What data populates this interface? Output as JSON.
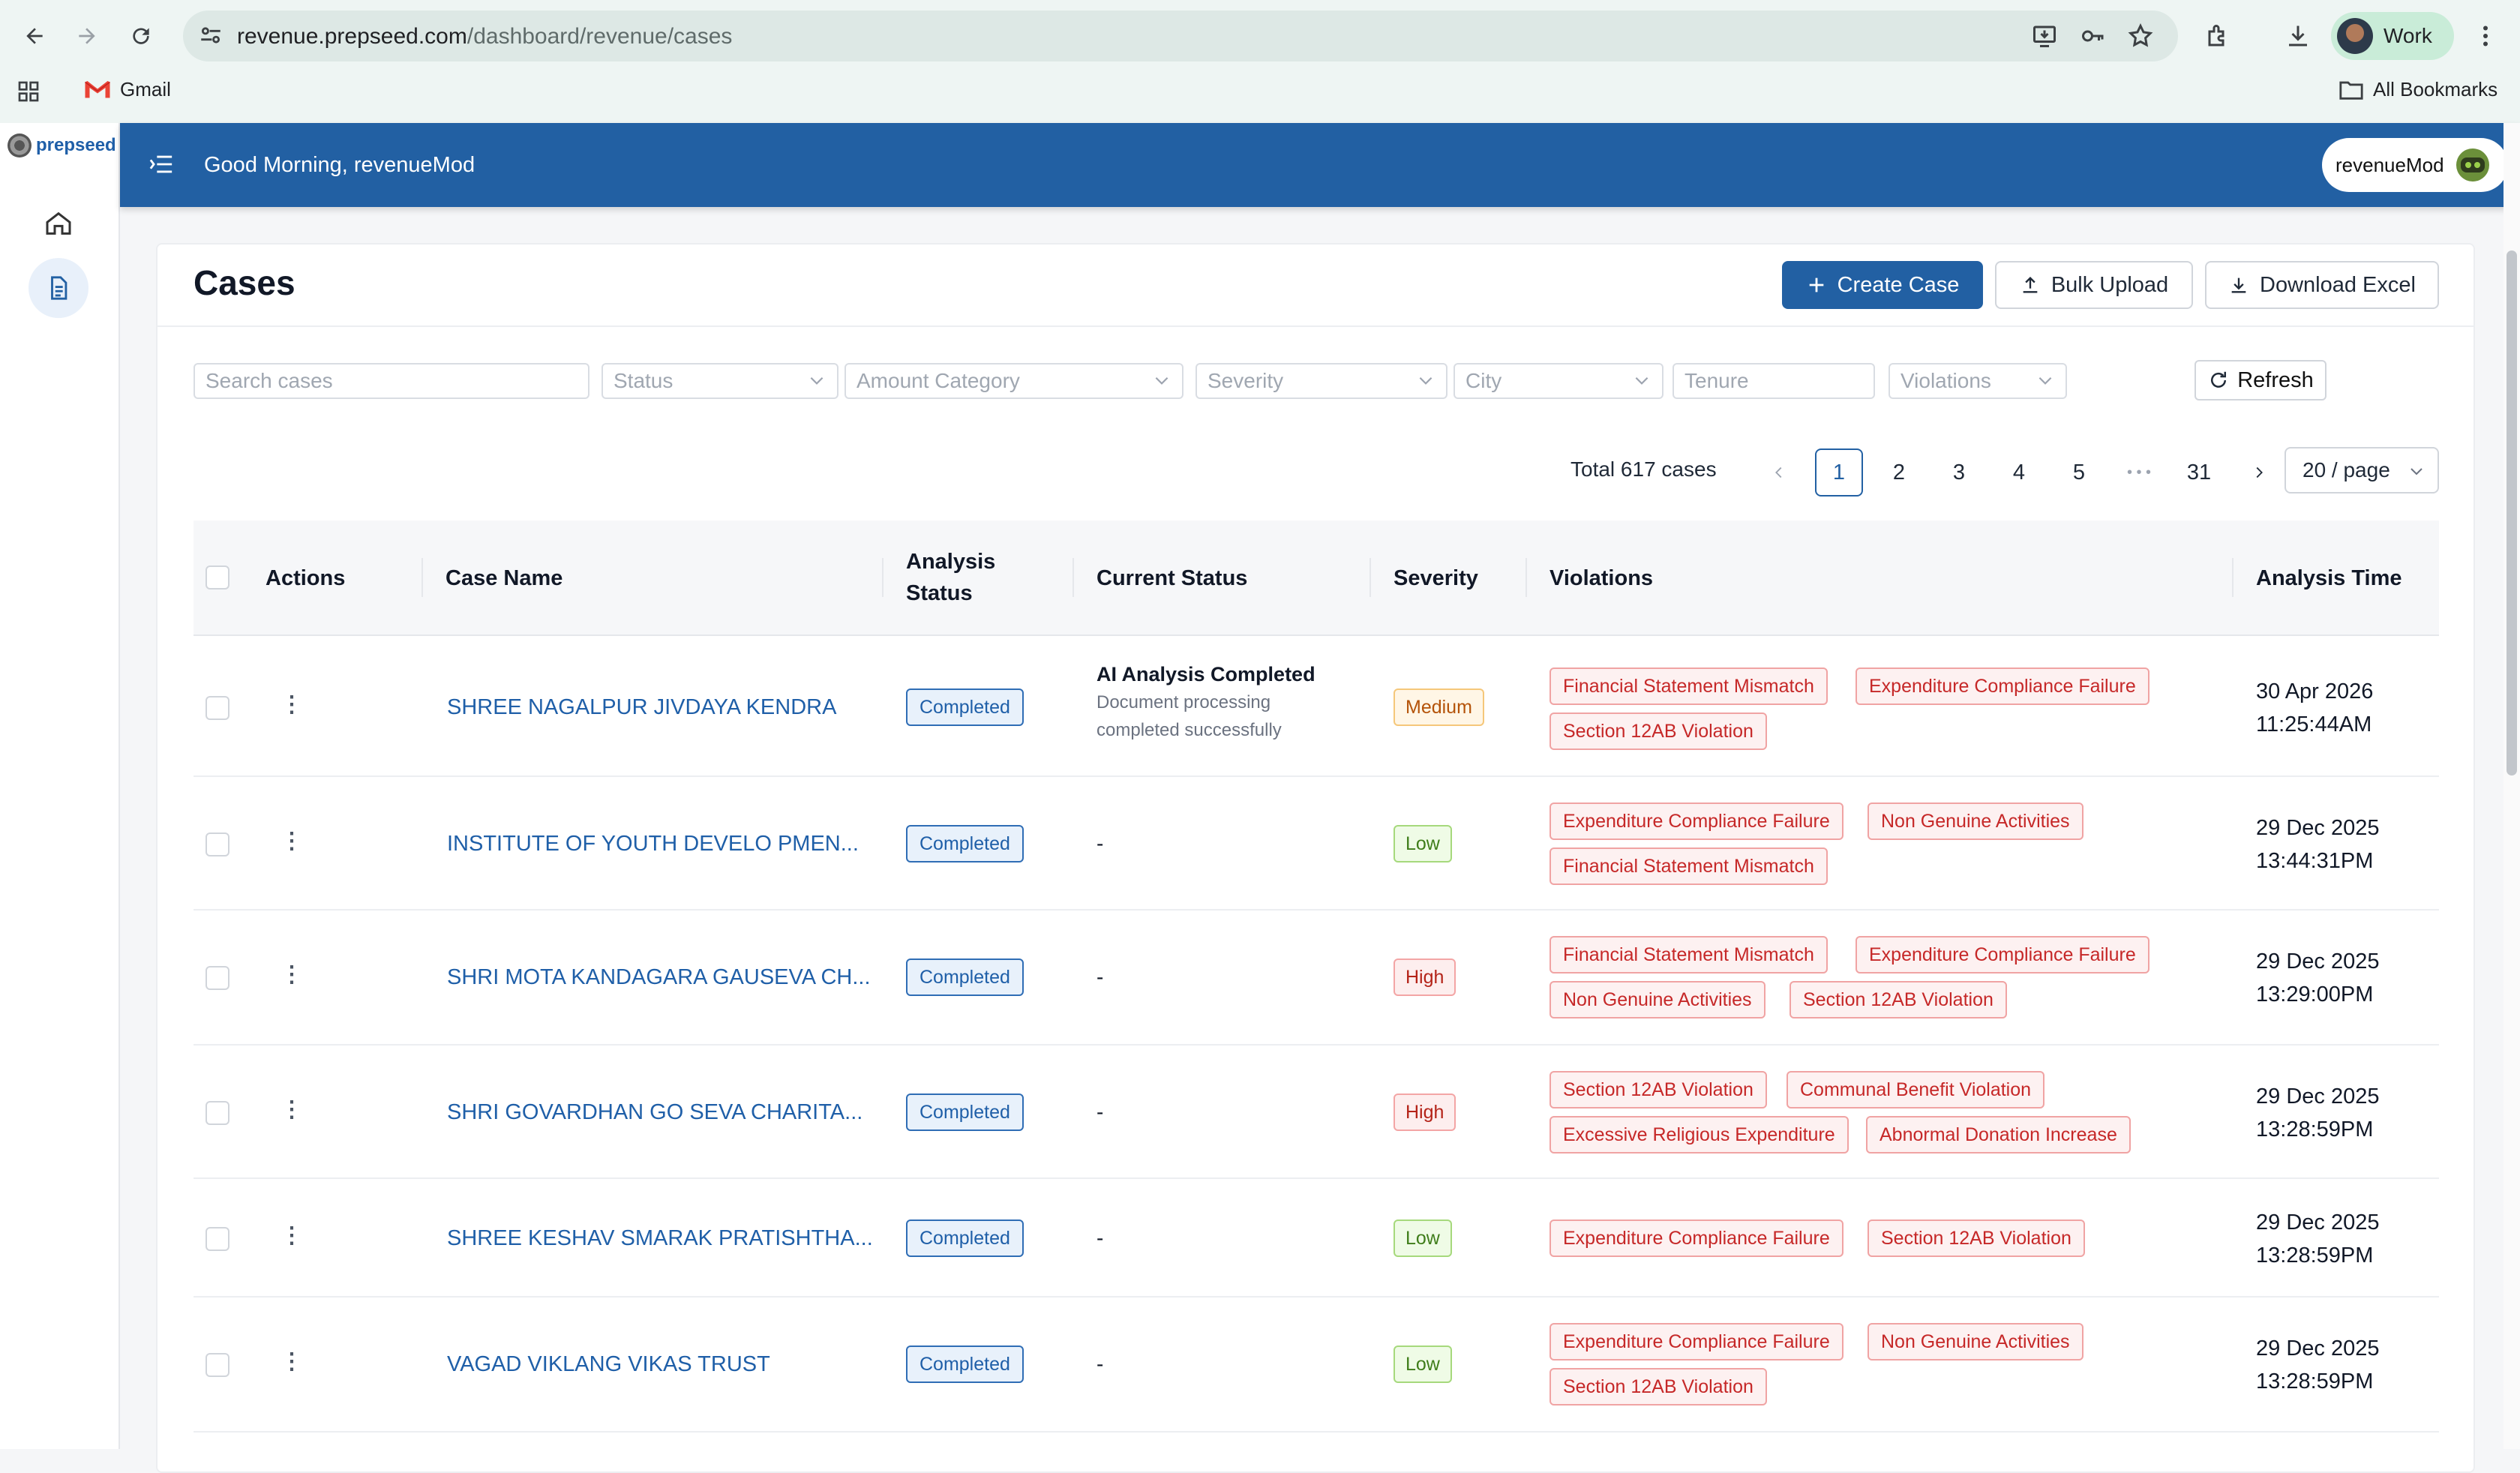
{
  "browser": {
    "url_host": "revenue.prepseed.com",
    "url_path": "/dashboard/revenue/cases",
    "profile_label": "Work",
    "bookmark_gmail": "Gmail",
    "bookmark_all": "All Bookmarks"
  },
  "app": {
    "logo_text": "prepseed",
    "greeting": "Good Morning, revenueMod",
    "user_name": "revenueMod"
  },
  "page": {
    "title": "Cases",
    "create_label": "Create Case",
    "bulk_label": "Bulk Upload",
    "excel_label": "Download Excel",
    "refresh_label": "Refresh"
  },
  "filters": {
    "search_placeholder": "Search cases",
    "status": "Status",
    "amount_category": "Amount Category",
    "severity": "Severity",
    "city": "City",
    "tenure": "Tenure",
    "violations": "Violations"
  },
  "pagination": {
    "total": "Total 617 cases",
    "pages": [
      "1",
      "2",
      "3",
      "4",
      "5"
    ],
    "ellipsis": "• • •",
    "last": "31",
    "current": "1",
    "page_size": "20 / page"
  },
  "table": {
    "headers": {
      "actions": "Actions",
      "case_name": "Case Name",
      "analysis_status_1": "Analysis",
      "analysis_status_2": "Status",
      "current_status": "Current Status",
      "severity": "Severity",
      "violations": "Violations",
      "analysis_time": "Analysis Time"
    },
    "rows": [
      {
        "name": "SHREE NAGALPUR JIVDAYA KENDRA",
        "analysis_status": "Completed",
        "current_title": "AI Analysis Completed",
        "current_sub_1": "Document processing",
        "current_sub_2": "completed successfully",
        "severity": "Medium",
        "violations": [
          "Financial Statement Mismatch",
          "Expenditure Compliance Failure",
          "Section 12AB Violation"
        ],
        "date": "30 Apr 2026",
        "time": "11:25:44AM"
      },
      {
        "name": "INSTITUTE OF YOUTH DEVELO PMEN...",
        "analysis_status": "Completed",
        "current": "-",
        "severity": "Low",
        "violations": [
          "Expenditure Compliance Failure",
          "Non Genuine Activities",
          "Financial Statement Mismatch"
        ],
        "date": "29 Dec 2025",
        "time": "13:44:31PM"
      },
      {
        "name": "SHRI MOTA KANDAGARA GAUSEVA CH...",
        "analysis_status": "Completed",
        "current": "-",
        "severity": "High",
        "violations": [
          "Financial Statement Mismatch",
          "Expenditure Compliance Failure",
          "Non Genuine Activities",
          "Section 12AB Violation"
        ],
        "date": "29 Dec 2025",
        "time": "13:29:00PM"
      },
      {
        "name": "SHRI GOVARDHAN GO SEVA CHARITA...",
        "analysis_status": "Completed",
        "current": "-",
        "severity": "High",
        "violations": [
          "Section 12AB Violation",
          "Communal Benefit Violation",
          "Excessive Religious Expenditure",
          "Abnormal Donation Increase"
        ],
        "date": "29 Dec 2025",
        "time": "13:28:59PM"
      },
      {
        "name": "SHREE KESHAV SMARAK PRATISHTHA...",
        "analysis_status": "Completed",
        "current": "-",
        "severity": "Low",
        "violations": [
          "Expenditure Compliance Failure",
          "Section 12AB Violation"
        ],
        "date": "29 Dec 2025",
        "time": "13:28:59PM"
      },
      {
        "name": "VAGAD VIKLANG VIKAS TRUST",
        "analysis_status": "Completed",
        "current": "-",
        "severity": "Low",
        "violations": [
          "Expenditure Compliance Failure",
          "Non Genuine Activities",
          "Section 12AB Violation"
        ],
        "date": "29 Dec 2025",
        "time": "13:28:59PM"
      }
    ]
  },
  "colors": {
    "brand": "#2260a3",
    "link": "#1f5fa8",
    "violation": "#c62828"
  },
  "icons": [
    "back-icon",
    "forward-icon",
    "reload-icon",
    "site-settings-icon",
    "install-icon",
    "password-key-icon",
    "star-icon",
    "extensions-icon",
    "download-icon",
    "more-vert-icon",
    "apps-grid-icon",
    "gmail-icon",
    "folder-icon",
    "home-icon",
    "document-icon",
    "menu-fold-icon",
    "plus-icon",
    "upload-icon",
    "download-icon",
    "refresh-icon",
    "chevron-left-icon",
    "chevron-right-icon",
    "chevron-down-icon",
    "kebab-icon"
  ]
}
